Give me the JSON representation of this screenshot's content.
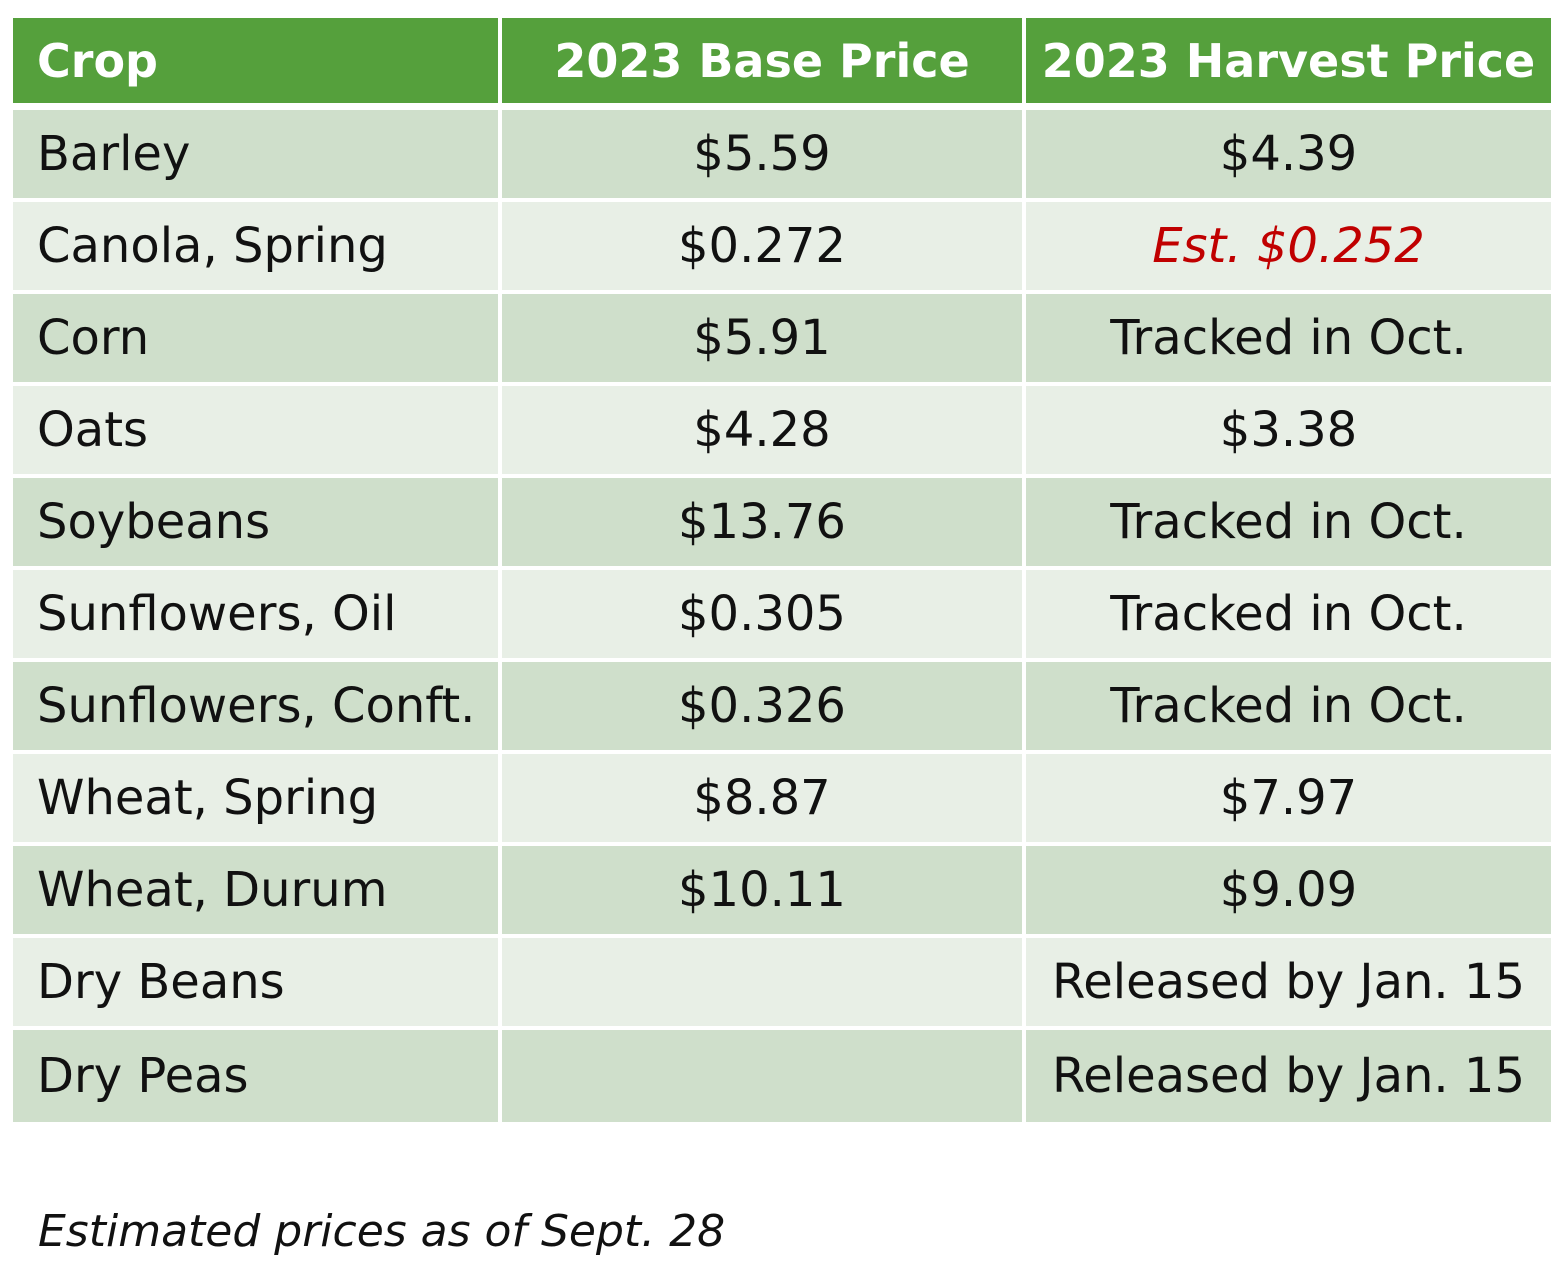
{
  "table": {
    "headers": [
      "Crop",
      "2023 Base Price",
      "2023 Harvest Price"
    ],
    "rows": [
      {
        "crop": "Barley",
        "base_price": "$5.59",
        "harvest_price": "$4.39",
        "harvest_estimated": false
      },
      {
        "crop": "Canola, Spring",
        "base_price": "$0.272",
        "harvest_price": "Est. $0.252",
        "harvest_estimated": true
      },
      {
        "crop": "Corn",
        "base_price": "$5.91",
        "harvest_price": "Tracked in Oct.",
        "harvest_estimated": false
      },
      {
        "crop": "Oats",
        "base_price": "$4.28",
        "harvest_price": "$3.38",
        "harvest_estimated": false
      },
      {
        "crop": "Soybeans",
        "base_price": "$13.76",
        "harvest_price": "Tracked in Oct.",
        "harvest_estimated": false
      },
      {
        "crop": "Sunflowers, Oil",
        "base_price": "$0.305",
        "harvest_price": "Tracked in Oct.",
        "harvest_estimated": false
      },
      {
        "crop": "Sunflowers, Conft.",
        "base_price": "$0.326",
        "harvest_price": "Tracked in Oct.",
        "harvest_estimated": false
      },
      {
        "crop": "Wheat, Spring",
        "base_price": "$8.87",
        "harvest_price": "$7.97",
        "harvest_estimated": false
      },
      {
        "crop": "Wheat, Durum",
        "base_price": "$10.11",
        "harvest_price": "$9.09",
        "harvest_estimated": false
      },
      {
        "crop": "Dry Beans",
        "base_price": "",
        "harvest_price": "Released by Jan. 15",
        "harvest_estimated": false
      },
      {
        "crop": "Dry Peas",
        "base_price": "",
        "harvest_price": "Released by Jan. 15",
        "harvest_estimated": false
      }
    ]
  },
  "footnote": "Estimated prices as of Sept. 28",
  "colors": {
    "header_bg": "#55a03c",
    "header_text": "#ffffff",
    "row_dark": "#cfdfcb",
    "row_light": "#e8efe6",
    "estimate_text": "#c00000"
  }
}
